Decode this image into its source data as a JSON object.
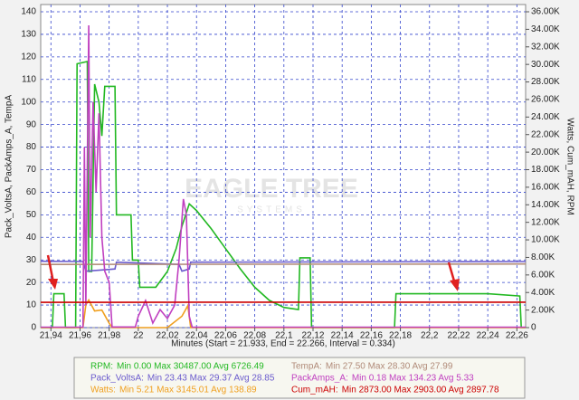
{
  "chart_data": {
    "type": "line",
    "watermark": "EAGLE TREE",
    "watermark_sub": "SYSTEMS",
    "x_label": "Minutes (Start = 21.933, End = 22.266, Interval = 0.334)",
    "y_label": "Pack_VoltsA, PackAmps_A, TempA",
    "y2_label": "Watts, Cum_mAH, RPM",
    "xlim": [
      21.933,
      22.266
    ],
    "xticks": [
      {
        "value": 21.94,
        "label": "21,94"
      },
      {
        "value": 21.96,
        "label": "21,96"
      },
      {
        "value": 21.98,
        "label": "21,98"
      },
      22,
      {
        "value": 22.02,
        "label": "22,02"
      },
      {
        "value": 22.04,
        "label": "22,04"
      },
      {
        "value": 22.06,
        "label": "22,06"
      },
      {
        "value": 22.08,
        "label": "22,08"
      },
      {
        "value": 22.1,
        "label": "22,1"
      },
      {
        "value": 22.12,
        "label": "22,12"
      },
      {
        "value": 22.14,
        "label": "22,14"
      },
      {
        "value": 22.16,
        "label": "22,16"
      },
      {
        "value": 22.18,
        "label": "22,18"
      },
      {
        "value": 22.2,
        "label": "22,2"
      },
      {
        "value": 22.22,
        "label": "22,22"
      },
      {
        "value": 22.24,
        "label": "22,24"
      },
      {
        "value": 22.26,
        "label": "22,26"
      }
    ],
    "ylim": [
      0,
      140
    ],
    "yticks": [
      0,
      10,
      20,
      30,
      40,
      50,
      60,
      70,
      80,
      90,
      100,
      110,
      120,
      130,
      140
    ],
    "y2lim": [
      0,
      36000
    ],
    "y2ticks": [
      0,
      {
        "value": 2000,
        "label": "2.00K"
      },
      {
        "value": 4000,
        "label": "4.00K"
      },
      {
        "value": 6000,
        "label": "6.00K"
      },
      {
        "value": 8000,
        "label": "8.00K"
      },
      {
        "value": 10000,
        "label": "10.00K"
      },
      {
        "value": 12000,
        "label": "12.00K"
      },
      {
        "value": 14000,
        "label": "14.00K"
      },
      {
        "value": 16000,
        "label": "16.00K"
      },
      {
        "value": 18000,
        "label": "18.00K"
      },
      {
        "value": 20000,
        "label": "20.00K"
      },
      {
        "value": 22000,
        "label": "22.00K"
      },
      {
        "value": 24000,
        "label": "24.00K"
      },
      {
        "value": 26000,
        "label": "26.00K"
      },
      {
        "value": 28000,
        "label": "28.00K"
      },
      {
        "value": 30000,
        "label": "30.00K"
      },
      {
        "value": 32000,
        "label": "32.00K"
      },
      {
        "value": 34000,
        "label": "34.00K"
      },
      {
        "value": 36000,
        "label": "36.00K"
      }
    ],
    "grid": true,
    "series": [
      {
        "name": "RPM:",
        "stats": "Min 0.00   Max 30487.00   Avg 6726.49",
        "color": "#22b822",
        "axis": "y2",
        "x": [
          21.933,
          21.941,
          21.942,
          21.949,
          21.95,
          21.957,
          21.958,
          21.965,
          21.966,
          21.968,
          21.97,
          21.973,
          21.975,
          21.977,
          21.984,
          21.985,
          21.995,
          21.996,
          22.0,
          22.001,
          22.012,
          22.02,
          22.026,
          22.03,
          22.035,
          22.04,
          22.05,
          22.06,
          22.07,
          22.08,
          22.09,
          22.1,
          22.11,
          22.111,
          22.118,
          22.119,
          22.176,
          22.177,
          22.24,
          22.262,
          22.263,
          22.266
        ],
        "values": [
          0,
          0,
          3860,
          3860,
          0,
          0,
          30070,
          30330,
          6400,
          6400,
          27750,
          25700,
          21850,
          27500,
          27500,
          12850,
          12850,
          7700,
          7700,
          4600,
          4600,
          6400,
          9000,
          11550,
          14100,
          13350,
          11300,
          9000,
          6700,
          4600,
          3100,
          2300,
          2050,
          7950,
          7950,
          0,
          0,
          3860,
          3860,
          3600,
          0,
          0
        ]
      },
      {
        "name": "Pack_VoltsA:",
        "stats": "Min 23.43   Max 29.37   Avg 28.85",
        "color": "#6a5acd",
        "x": [
          21.933,
          21.962,
          21.964,
          21.984,
          21.985,
          22.028,
          22.03,
          22.035,
          22.036,
          22.266
        ],
        "values": [
          29.4,
          29.3,
          25,
          26,
          29,
          28,
          25,
          26,
          29,
          29.3
        ]
      },
      {
        "name": "Watts:",
        "stats": "Min 5.21   Max 3145.01   Avg 138.89",
        "color": "#f0a020",
        "axis": "y2",
        "x": [
          21.933,
          21.962,
          21.964,
          21.966,
          21.97,
          21.975,
          21.98,
          21.982,
          22.02,
          22.03,
          22.034,
          22.036,
          22.266
        ],
        "values": [
          0,
          0,
          2600,
          3145,
          1900,
          2000,
          500,
          0,
          0,
          1300,
          2500,
          0,
          0
        ]
      },
      {
        "name": "TempA:",
        "stats": "Min 27.50   Max 28.30   Avg 27.99",
        "color": "#b08a78",
        "x": [
          21.933,
          22.266
        ],
        "values": [
          28,
          28.2
        ]
      },
      {
        "name": "PackAmps_A:",
        "stats": "Min 0.18   Max 134.23   Avg 5.33",
        "color": "#c040c0",
        "x": [
          21.933,
          21.962,
          21.963,
          21.964,
          21.966,
          21.967,
          21.969,
          21.971,
          21.973,
          21.975,
          21.977,
          21.98,
          21.982,
          21.998,
          22.0,
          22.005,
          22.01,
          22.015,
          22.02,
          22.025,
          22.028,
          22.031,
          22.033,
          22.035,
          22.037,
          22.266
        ],
        "values": [
          0.2,
          0.2,
          80,
          10,
          134,
          40,
          100,
          60,
          95,
          40,
          25,
          20,
          0.3,
          0.3,
          5,
          12,
          2,
          8,
          4,
          10,
          30,
          57,
          50,
          5,
          0.2,
          0.2
        ]
      },
      {
        "name": "Cum_mAH:",
        "stats": "Min 2873.00   Max 2903.00   Avg 2897.78",
        "color": "#cc0000",
        "axis": "y2",
        "x": [
          21.933,
          21.965,
          22.04,
          22.266
        ],
        "values": [
          2873,
          2880,
          2895,
          2903
        ]
      }
    ]
  }
}
